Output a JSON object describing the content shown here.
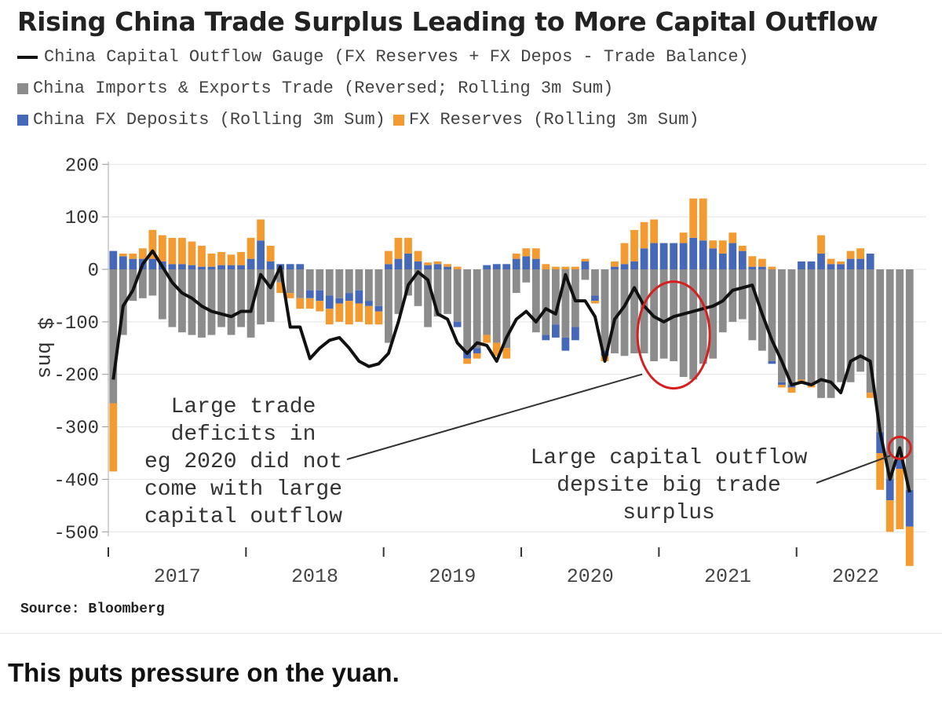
{
  "caption": "This puts pressure on the yuan.",
  "chart_data": {
    "type": "bar",
    "title": "Rising China Trade Surplus Leading to More Capital Outflow",
    "ylabel": "$ bns",
    "ylim": [
      -500,
      200
    ],
    "yticks": [
      200,
      100,
      0,
      -100,
      -200,
      -300,
      -400,
      -500
    ],
    "xtick_labels": [
      "2017",
      "2018",
      "2019",
      "2020",
      "2021",
      "2022"
    ],
    "legend": {
      "line": "China Capital Outflow Gauge (FX Reserves + FX Depos - Trade Balance)",
      "trade": "China Imports & Exports Trade (Reversed; Rolling 3m Sum)",
      "deposits": "China FX Deposits (Rolling 3m Sum)",
      "reserves": "FX Reserves (Rolling 3m Sum)"
    },
    "colors": {
      "trade": "#8c8c8c",
      "deposits": "#4668b8",
      "reserves": "#f39a30",
      "line": "#111111",
      "circle": "#d62020"
    },
    "series": [
      {
        "name": "China Imports & Exports Trade (Reversed; Rolling 3m Sum)",
        "key": "trade",
        "values": [
          -255,
          -125,
          -60,
          -55,
          -50,
          -95,
          -110,
          -120,
          -125,
          -130,
          -125,
          -110,
          -125,
          -110,
          -130,
          -105,
          -100,
          -25,
          -45,
          -55,
          -40,
          -40,
          -50,
          -55,
          -45,
          -40,
          -60,
          -70,
          -140,
          -85,
          -50,
          -70,
          -110,
          -90,
          -85,
          -100,
          -155,
          -150,
          -125,
          -140,
          -150,
          -45,
          -25,
          -120,
          -125,
          -105,
          -130,
          -110,
          -20,
          -50,
          -155,
          -160,
          -165,
          -160,
          -160,
          -175,
          -170,
          -175,
          -205,
          -210,
          -180,
          -170,
          -120,
          -100,
          -95,
          -135,
          -155,
          -175,
          -215,
          -220,
          -210,
          -220,
          -245,
          -245,
          -215,
          -215,
          -195,
          -235,
          -310,
          -400,
          -360,
          -420
        ]
      },
      {
        "name": "China FX Deposits (Rolling 3m Sum)",
        "key": "deposits",
        "values": [
          35,
          25,
          20,
          20,
          20,
          15,
          10,
          10,
          8,
          5,
          5,
          8,
          8,
          8,
          20,
          55,
          15,
          10,
          10,
          10,
          -15,
          -20,
          -25,
          -10,
          -15,
          -25,
          -10,
          -10,
          10,
          20,
          30,
          15,
          8,
          10,
          5,
          -10,
          -15,
          -10,
          8,
          10,
          10,
          20,
          25,
          20,
          -10,
          -25,
          -25,
          -25,
          15,
          -10,
          -10,
          5,
          10,
          15,
          40,
          50,
          50,
          50,
          50,
          60,
          55,
          40,
          30,
          50,
          35,
          5,
          5,
          -5,
          -5,
          -5,
          15,
          15,
          30,
          10,
          10,
          20,
          20,
          30,
          -40,
          -40,
          -20,
          -70
        ]
      },
      {
        "name": "FX Reserves (Rolling 3m Sum)",
        "key": "reserves",
        "values": [
          -130,
          5,
          10,
          20,
          55,
          50,
          50,
          50,
          45,
          40,
          25,
          25,
          20,
          25,
          40,
          40,
          30,
          -20,
          -10,
          -20,
          -20,
          -20,
          -30,
          -35,
          -45,
          -35,
          -35,
          -25,
          25,
          40,
          30,
          20,
          5,
          5,
          5,
          5,
          -10,
          -10,
          -15,
          -25,
          -20,
          10,
          15,
          20,
          10,
          5,
          5,
          5,
          5,
          -5,
          -10,
          10,
          40,
          60,
          50,
          45,
          0,
          0,
          20,
          75,
          80,
          15,
          25,
          20,
          10,
          20,
          15,
          5,
          -5,
          -10,
          -5,
          -5,
          35,
          10,
          5,
          15,
          20,
          -10,
          -70,
          -60,
          -115,
          -75
        ]
      }
    ],
    "line": {
      "name": "China Capital Outflow Gauge (FX Reserves + FX Depos - Trade Balance)",
      "values": [
        -210,
        -70,
        -40,
        10,
        35,
        5,
        -25,
        -45,
        -55,
        -70,
        -80,
        -85,
        -90,
        -80,
        -80,
        -10,
        -35,
        5,
        -110,
        -110,
        -170,
        -150,
        -135,
        -130,
        -150,
        -175,
        -185,
        -180,
        -160,
        -100,
        -30,
        -5,
        -20,
        -85,
        -95,
        -140,
        -160,
        -140,
        -145,
        -175,
        -130,
        -95,
        -80,
        -100,
        -75,
        -85,
        -10,
        -60,
        -60,
        -90,
        -175,
        -95,
        -70,
        -35,
        -70,
        -90,
        -100,
        -90,
        -85,
        -80,
        -75,
        -70,
        -60,
        -40,
        -35,
        -30,
        -85,
        -135,
        -175,
        -220,
        -215,
        -220,
        -210,
        -215,
        -235,
        -175,
        -165,
        -175,
        -310,
        -400,
        -340,
        -425
      ]
    },
    "annotations": [
      {
        "text": [
          "Large trade",
          "deficits in",
          "eg 2020 did not",
          "come with large",
          "capital outflow"
        ],
        "points_to": "2020 red circle"
      },
      {
        "text": [
          "Large capital outflow",
          "depsite big trade",
          "surplus"
        ],
        "points_to": "2022 red circle"
      }
    ]
  },
  "source": "Source: Bloomberg"
}
